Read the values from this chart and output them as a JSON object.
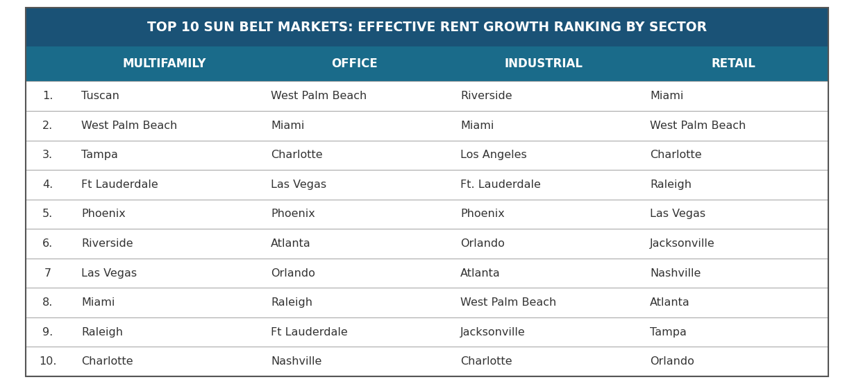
{
  "title": "TOP 10 SUN BELT MARKETS: EFFECTIVE RENT GROWTH RANKING BY SECTOR",
  "title_bg_color": "#1a5276",
  "header_bg_color": "#1a6b8a",
  "header_text_color": "#ffffff",
  "title_text_color": "#ffffff",
  "columns": [
    "MULTIFAMILY",
    "OFFICE",
    "INDUSTRIAL",
    "RETAIL"
  ],
  "rank_labels": [
    "1.",
    "2.",
    "3.",
    "4.",
    "5.",
    "6.",
    "7",
    "8.",
    "9.",
    "10."
  ],
  "data": [
    [
      "Tuscan",
      "West Palm Beach",
      "Riverside",
      "Miami"
    ],
    [
      "West Palm Beach",
      "Miami",
      "Miami",
      "West Palm Beach"
    ],
    [
      "Tampa",
      "Charlotte",
      "Los Angeles",
      "Charlotte"
    ],
    [
      "Ft Lauderdale",
      "Las Vegas",
      "Ft. Lauderdale",
      "Raleigh"
    ],
    [
      "Phoenix",
      "Phoenix",
      "Phoenix",
      "Las Vegas"
    ],
    [
      "Riverside",
      "Atlanta",
      "Orlando",
      "Jacksonville"
    ],
    [
      "Las Vegas",
      "Orlando",
      "Atlanta",
      "Nashville"
    ],
    [
      "Miami",
      "Raleigh",
      "West Palm Beach",
      "Atlanta"
    ],
    [
      "Raleigh",
      "Ft Lauderdale",
      "Jacksonville",
      "Tampa"
    ],
    [
      "Charlotte",
      "Nashville",
      "Charlotte",
      "Orlando"
    ]
  ],
  "row_text_color": "#333333",
  "divider_color": "#aaaaaa",
  "bg_color": "#ffffff",
  "outer_border_color": "#555555",
  "font_size_title": 13.5,
  "font_size_header": 12,
  "font_size_data": 11.5
}
